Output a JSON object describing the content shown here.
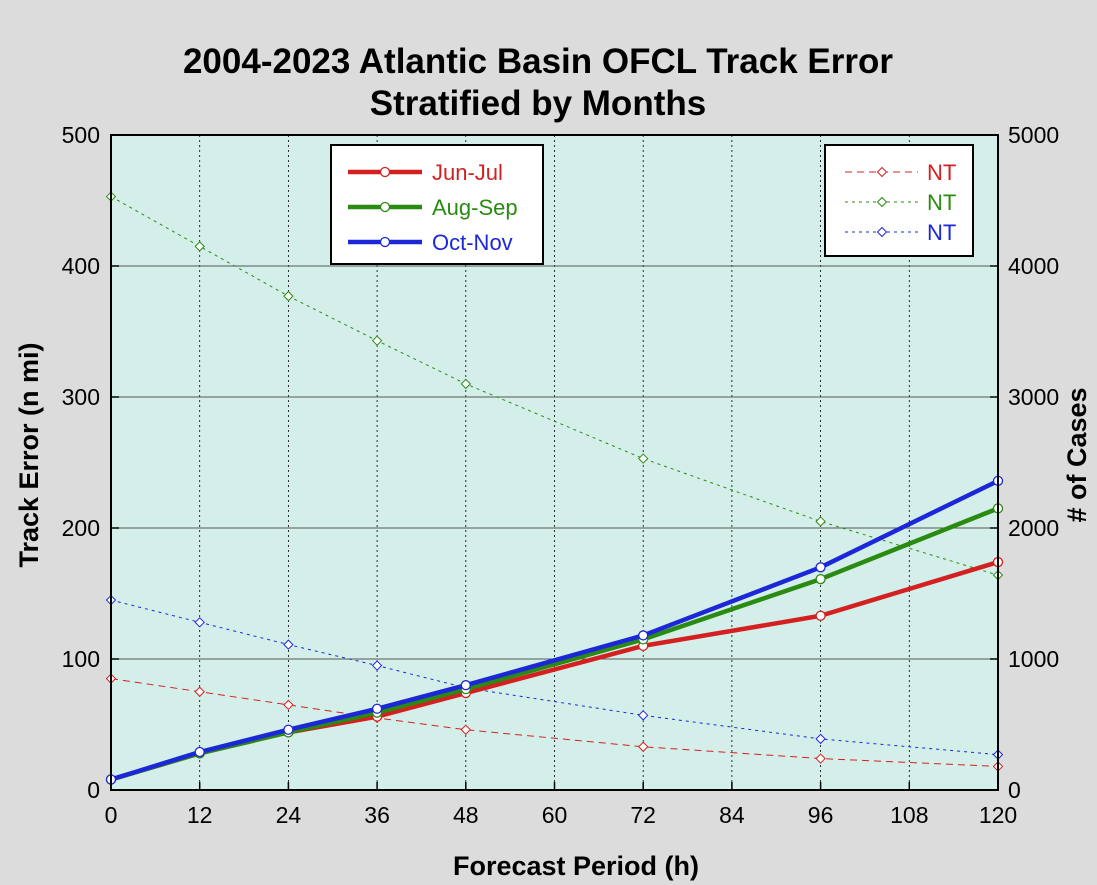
{
  "chart_data": {
    "type": "line",
    "title": "2004-2023 Atlantic Basin OFCL Track Error",
    "subtitle": "Stratified by Months",
    "xlabel": "Forecast Period (h)",
    "ylabel": "Track Error (n mi)",
    "y2label": "# of Cases",
    "x": [
      0,
      12,
      24,
      36,
      48,
      72,
      96,
      120
    ],
    "xticks": [
      "0",
      "12",
      "24",
      "36",
      "48",
      "60",
      "72",
      "84",
      "96",
      "108",
      "120"
    ],
    "xtick_values": [
      0,
      12,
      24,
      36,
      48,
      60,
      72,
      84,
      96,
      108,
      120
    ],
    "xlim": [
      0,
      120
    ],
    "yticks": [
      "0",
      "100",
      "200",
      "300",
      "400",
      "500"
    ],
    "ytick_values": [
      0,
      100,
      200,
      300,
      400,
      500
    ],
    "ylim": [
      0,
      500
    ],
    "y2ticks": [
      "0",
      "1000",
      "2000",
      "3000",
      "4000",
      "5000"
    ],
    "y2tick_values": [
      0,
      1000,
      2000,
      3000,
      4000,
      5000
    ],
    "y2lim": [
      0,
      5000
    ],
    "grid": true,
    "series": [
      {
        "name": "Jun-Jul",
        "color": "#d42020",
        "values": [
          8,
          28,
          44,
          56,
          74,
          110,
          133,
          174
        ]
      },
      {
        "name": "Aug-Sep",
        "color": "#2a8a12",
        "values": [
          8,
          28,
          44,
          59,
          77,
          115,
          161,
          215
        ]
      },
      {
        "name": "Oct-Nov",
        "color": "#1c28d8",
        "values": [
          8,
          29,
          46,
          62,
          80,
          118,
          170,
          236
        ]
      }
    ],
    "cases_series": [
      {
        "name": "NT",
        "color": "#d42020",
        "values": [
          850,
          750,
          650,
          550,
          460,
          330,
          240,
          180
        ]
      },
      {
        "name": "NT",
        "color": "#2a8a12",
        "values": [
          4530,
          4150,
          3770,
          3430,
          3100,
          2530,
          2050,
          1640
        ]
      },
      {
        "name": "NT",
        "color": "#1c28d8",
        "values": [
          1450,
          1280,
          1110,
          950,
          780,
          570,
          390,
          270
        ]
      }
    ],
    "legend_left_placement": "top-left",
    "legend_right_placement": "top-right",
    "colors": {
      "plot_background": "#d4efea",
      "figure_background": "#dcdcdc"
    }
  }
}
